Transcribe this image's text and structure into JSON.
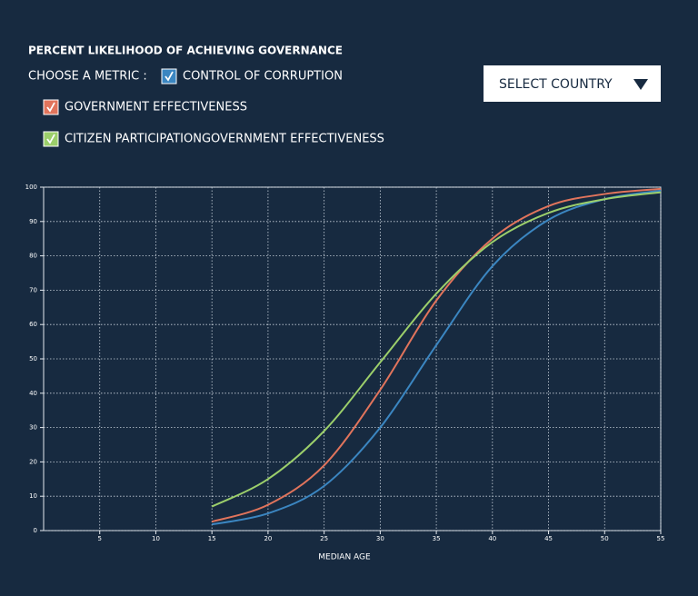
{
  "metric_label": "CHOOSE A METRIC :",
  "country_select": "SELECT COUNTRY",
  "chart_data": {
    "type": "line",
    "title": "PERCENT LIKELIHOOD OF ACHIEVING GOVERNANCE",
    "x_label": "MEDIAN AGE",
    "x": [
      15,
      20,
      25,
      30,
      35,
      40,
      45,
      50,
      55
    ],
    "series": [
      {
        "name": "CONTROL OF CORRUPTION",
        "color": "#3b86c1",
        "values": [
          1.8,
          5,
          13,
          30,
          54,
          77,
          90.5,
          96.5,
          99
        ]
      },
      {
        "name": "GOVERNMENT EFFECTIVENESS",
        "color": "#e1745c",
        "values": [
          2.6,
          7.5,
          19,
          41,
          67,
          85,
          94.5,
          98,
          99.5
        ]
      },
      {
        "name": "CITIZEN PARTICIPATIONGOVERNMENT EFFECTIVENESS",
        "color": "#9ccf6b",
        "values": [
          7,
          15,
          29,
          49,
          69,
          84,
          92.5,
          96.5,
          98.5
        ]
      }
    ],
    "xlim": [
      0,
      55
    ],
    "xticks": [
      5,
      10,
      15,
      20,
      25,
      30,
      35,
      40,
      45,
      50,
      55
    ],
    "ylim": [
      0,
      100
    ],
    "yticks": [
      0,
      10,
      20,
      30,
      40,
      50,
      60,
      70,
      80,
      90,
      100
    ],
    "grid": true
  }
}
